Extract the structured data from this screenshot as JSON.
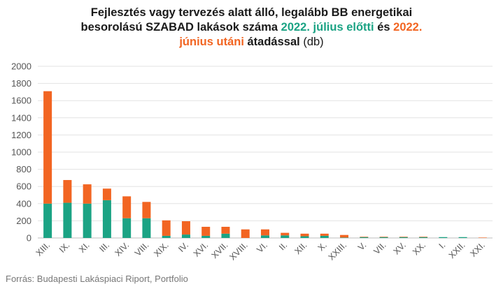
{
  "chart_data": {
    "type": "bar",
    "stacked": true,
    "title": {
      "line1": "Fejlesztés vagy tervezés alatt álló, legalább BB energetikai",
      "line2_a": "besorolású SZABAD lakások száma ",
      "line2_green": "2022. július előtti",
      "line2_b": " és ",
      "line2_orange": "2022.",
      "line3_orange": "június utáni",
      "line3_b": " átadással",
      "line3_unit": " (db)"
    },
    "categories": [
      "XIII.",
      "IX.",
      "XI.",
      "III.",
      "XIV.",
      "VIII.",
      "XIX.",
      "IV.",
      "XVI.",
      "XVII.",
      "XVIII.",
      "VI.",
      "II.",
      "XII.",
      "X.",
      "XXIII.",
      "V.",
      "VII.",
      "XV.",
      "XX.",
      "I.",
      "XXII.",
      "XXI."
    ],
    "series": [
      {
        "values": [
          400,
          410,
          400,
          440,
          230,
          230,
          25,
          40,
          25,
          50,
          0,
          30,
          30,
          20,
          25,
          5,
          10,
          10,
          10,
          10,
          10,
          10,
          0
        ]
      },
      {
        "values": [
          1310,
          265,
          225,
          135,
          255,
          190,
          180,
          155,
          105,
          80,
          100,
          70,
          30,
          30,
          25,
          30,
          5,
          5,
          5,
          5,
          0,
          0,
          5
        ]
      }
    ],
    "colors": [
      "#1ba384",
      "#f26522"
    ],
    "ylim": [
      0,
      2000
    ],
    "yticks": [
      "0",
      "200",
      "400",
      "600",
      "800",
      "1000",
      "1200",
      "1400",
      "1600",
      "1800",
      "2000"
    ],
    "grid": true,
    "legend": "none",
    "source": "Forrás: Budapesti Lakáspiaci Riport, Portfolio"
  }
}
